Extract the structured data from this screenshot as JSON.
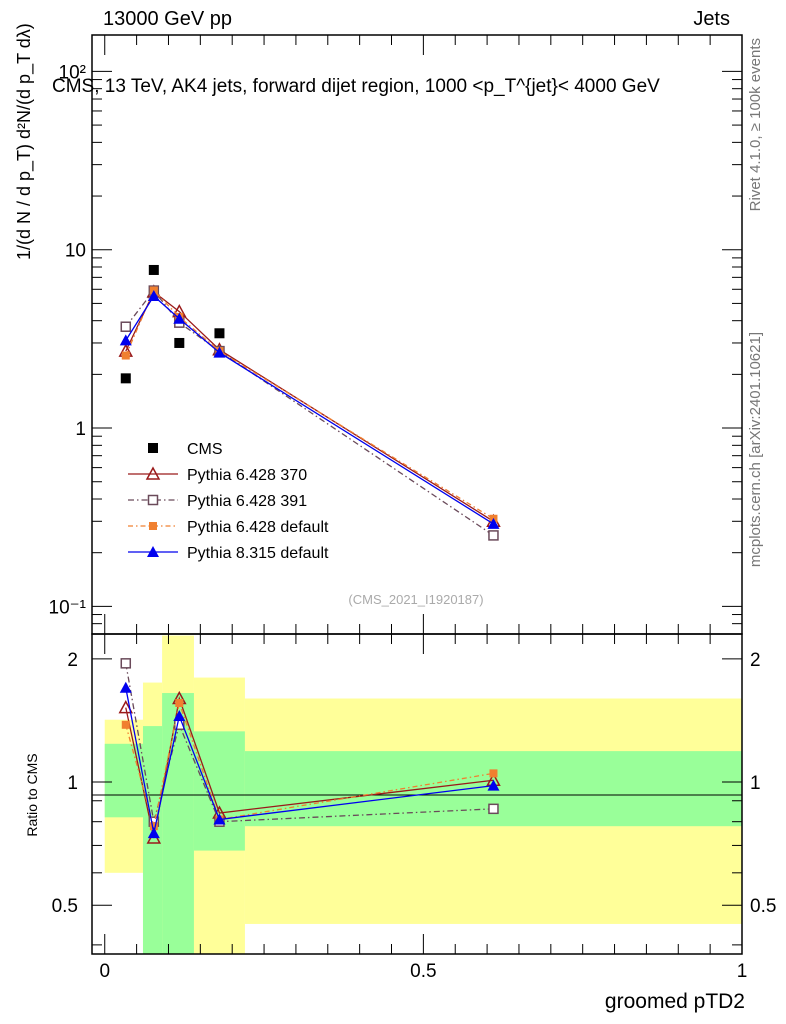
{
  "header": {
    "left": "13000 GeV pp",
    "right": "Jets",
    "rivet": "Rivet 4.1.0, ≥ 100k events",
    "mcplots": "mcplots.cern.ch [arXiv:2401.10621]"
  },
  "colors": {
    "cms": "#000000",
    "p370": "#9a1a1a",
    "p391": "#6a4a5a",
    "p6def": "#f08030",
    "p8def": "#0000ee",
    "band_inner": "#99ff99",
    "band_outer": "#ffff99"
  },
  "chart_data": [
    {
      "type": "scatter",
      "panel": "main",
      "title": "CMS, 13 TeV, AK4 jets, forward dijet region, 1000 <p_T^{jet}< 4000 GeV",
      "ylabel": "1/(d N / d p_T) d²N/(d p_T dλ)",
      "yscale": "log",
      "ylim": [
        0.07,
        160
      ],
      "xlim": [
        -0.02,
        1.0
      ],
      "ytick_labels": [
        "10⁻¹",
        "1",
        "10",
        "10²"
      ],
      "ytick_values": [
        0.1,
        1,
        10,
        100
      ],
      "watermark": "(CMS_2021_I1920187)",
      "x": [
        0.033,
        0.077,
        0.117,
        0.18,
        0.61
      ],
      "series": [
        {
          "name": "CMS",
          "key": "cms",
          "values": [
            1.9,
            7.7,
            3.0,
            3.4,
            null
          ]
        },
        {
          "name": "Pythia 6.428 370",
          "key": "p370",
          "values": [
            2.7,
            5.8,
            4.5,
            2.75,
            0.3
          ]
        },
        {
          "name": "Pythia 6.428 391",
          "key": "p391",
          "values": [
            3.7,
            5.9,
            3.9,
            2.7,
            0.25
          ]
        },
        {
          "name": "Pythia 6.428 default",
          "key": "p6def",
          "values": [
            2.55,
            5.9,
            4.2,
            2.7,
            0.31
          ]
        },
        {
          "name": "Pythia 8.315 default",
          "key": "p8def",
          "values": [
            3.1,
            5.5,
            4.1,
            2.65,
            0.29
          ]
        }
      ]
    },
    {
      "type": "line",
      "panel": "ratio",
      "ylabel": "Ratio to CMS",
      "xlabel": "groomed pTD2",
      "yscale": "log",
      "ylim": [
        0.38,
        2.3
      ],
      "xlim": [
        -0.02,
        1.0
      ],
      "ytick_labels": [
        "0.5",
        "1",
        "2"
      ],
      "ytick_values": [
        0.5,
        1,
        2
      ],
      "xtick_labels": [
        "0",
        "0.5",
        "1"
      ],
      "xtick_values": [
        0,
        0.5,
        1
      ],
      "bins": [
        {
          "lo": 0.0,
          "hi": 0.06,
          "inner": [
            0.82,
            1.24
          ],
          "outer": [
            0.6,
            1.42
          ]
        },
        {
          "lo": 0.06,
          "hi": 0.09,
          "inner": [
            0.38,
            1.37
          ],
          "outer": [
            0.38,
            1.75
          ]
        },
        {
          "lo": 0.09,
          "hi": 0.14,
          "inner": [
            0.38,
            1.65
          ],
          "outer": [
            0.38,
            2.28
          ]
        },
        {
          "lo": 0.14,
          "hi": 0.22,
          "inner": [
            0.68,
            1.33
          ],
          "outer": [
            0.38,
            1.8
          ]
        },
        {
          "lo": 0.22,
          "hi": 1.0,
          "inner": [
            0.78,
            1.19
          ],
          "outer": [
            0.45,
            1.6
          ]
        }
      ],
      "x": [
        0.033,
        0.077,
        0.117,
        0.18,
        0.61
      ],
      "series": [
        {
          "name": "Pythia 6.428 370",
          "key": "p370",
          "values": [
            1.52,
            0.73,
            1.6,
            0.84,
            1.01
          ]
        },
        {
          "name": "Pythia 6.428 391",
          "key": "p391",
          "values": [
            1.95,
            0.8,
            1.38,
            0.8,
            0.86
          ]
        },
        {
          "name": "Pythia 6.428 default",
          "key": "p6def",
          "values": [
            1.38,
            0.78,
            1.56,
            0.81,
            1.05
          ]
        },
        {
          "name": "Pythia 8.315 default",
          "key": "p8def",
          "values": [
            1.7,
            0.75,
            1.45,
            0.81,
            0.98
          ]
        }
      ]
    }
  ]
}
